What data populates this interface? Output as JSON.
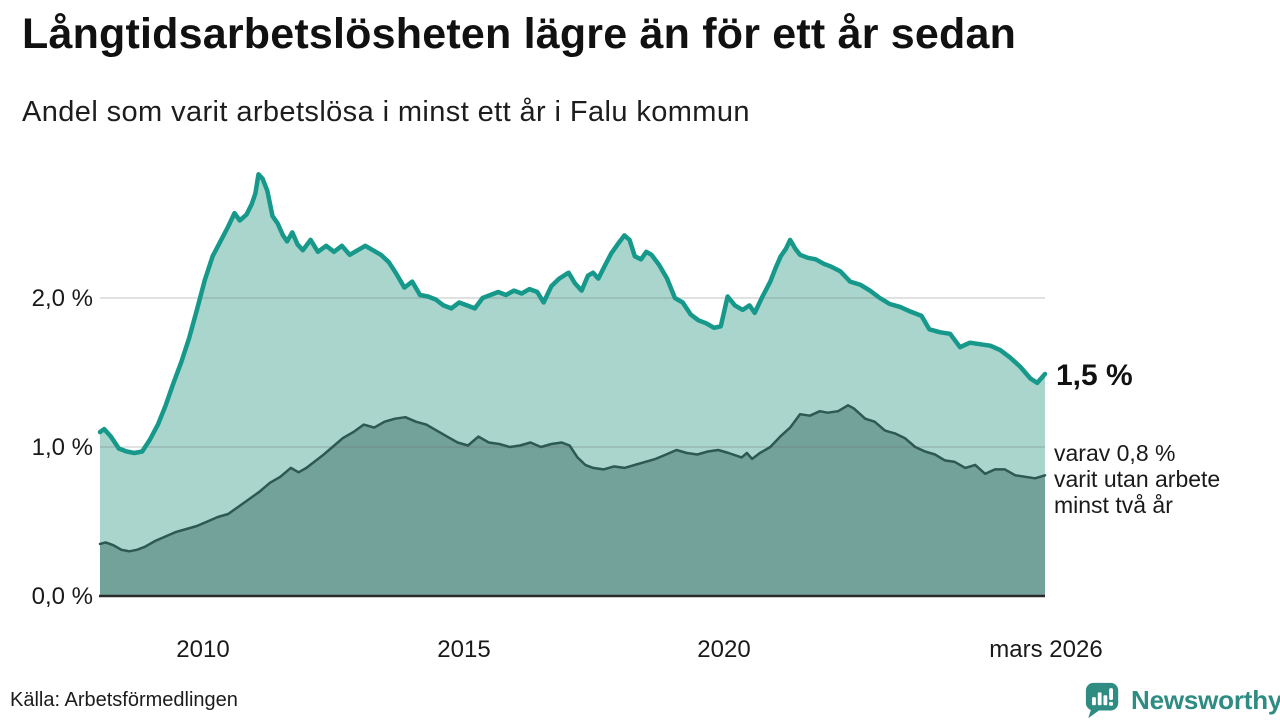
{
  "header": {
    "title": "Långtidsarbetslösheten lägre än för ett år sedan",
    "subtitle": "Andel som varit arbetslösa i minst ett år i Falu kommun"
  },
  "chart_data": {
    "type": "area",
    "title": "Långtidsarbetslösheten lägre än för ett år sedan",
    "subtitle": "Andel som varit arbetslösa i minst ett år i Falu kommun",
    "unit": "procent",
    "grid": "horizontal",
    "legend_position": "none",
    "x_axis": {
      "range_years": [
        2008.04,
        2026.17
      ],
      "ticks": [
        "2010",
        "2015",
        "2020",
        "mars 2026"
      ],
      "tick_years": [
        2010,
        2015,
        2020,
        2026.17
      ]
    },
    "y_axis": {
      "ticks": [
        "0,0 %",
        "1,0 %",
        "2,0 %"
      ],
      "tick_values": [
        0,
        1,
        2
      ],
      "gridline_values": [
        1,
        2
      ],
      "range": [
        0,
        3
      ]
    },
    "series": [
      {
        "id": "minst-ett-ar",
        "name": "Andel som varit arbetslösa i minst ett år",
        "line_color": "#16998a",
        "fill_color": "#a9d5cd",
        "end_value_label": "1,5 %",
        "points": [
          [
            2008.04,
            1.1
          ],
          [
            2008.12,
            1.12
          ],
          [
            2008.25,
            1.07
          ],
          [
            2008.4,
            0.99
          ],
          [
            2008.55,
            0.97
          ],
          [
            2008.7,
            0.96
          ],
          [
            2008.85,
            0.97
          ],
          [
            2009.0,
            1.05
          ],
          [
            2009.15,
            1.15
          ],
          [
            2009.3,
            1.28
          ],
          [
            2009.45,
            1.43
          ],
          [
            2009.6,
            1.57
          ],
          [
            2009.75,
            1.73
          ],
          [
            2009.9,
            1.92
          ],
          [
            2010.05,
            2.12
          ],
          [
            2010.2,
            2.28
          ],
          [
            2010.35,
            2.38
          ],
          [
            2010.5,
            2.48
          ],
          [
            2010.62,
            2.57
          ],
          [
            2010.72,
            2.52
          ],
          [
            2010.85,
            2.56
          ],
          [
            2010.95,
            2.63
          ],
          [
            2011.02,
            2.7
          ],
          [
            2011.08,
            2.83
          ],
          [
            2011.16,
            2.8
          ],
          [
            2011.25,
            2.72
          ],
          [
            2011.35,
            2.55
          ],
          [
            2011.45,
            2.5
          ],
          [
            2011.55,
            2.42
          ],
          [
            2011.63,
            2.38
          ],
          [
            2011.73,
            2.44
          ],
          [
            2011.83,
            2.36
          ],
          [
            2011.93,
            2.32
          ],
          [
            2012.08,
            2.39
          ],
          [
            2012.22,
            2.31
          ],
          [
            2012.38,
            2.35
          ],
          [
            2012.53,
            2.31
          ],
          [
            2012.68,
            2.35
          ],
          [
            2012.83,
            2.29
          ],
          [
            2012.98,
            2.32
          ],
          [
            2013.13,
            2.35
          ],
          [
            2013.28,
            2.32
          ],
          [
            2013.43,
            2.29
          ],
          [
            2013.58,
            2.24
          ],
          [
            2013.73,
            2.16
          ],
          [
            2013.88,
            2.07
          ],
          [
            2014.03,
            2.11
          ],
          [
            2014.18,
            2.02
          ],
          [
            2014.33,
            2.01
          ],
          [
            2014.48,
            1.99
          ],
          [
            2014.63,
            1.95
          ],
          [
            2014.78,
            1.93
          ],
          [
            2014.93,
            1.97
          ],
          [
            2015.08,
            1.95
          ],
          [
            2015.23,
            1.93
          ],
          [
            2015.38,
            2.0
          ],
          [
            2015.53,
            2.02
          ],
          [
            2015.68,
            2.04
          ],
          [
            2015.83,
            2.02
          ],
          [
            2015.98,
            2.05
          ],
          [
            2016.13,
            2.03
          ],
          [
            2016.28,
            2.06
          ],
          [
            2016.43,
            2.04
          ],
          [
            2016.55,
            1.97
          ],
          [
            2016.7,
            2.08
          ],
          [
            2016.85,
            2.13
          ],
          [
            2017.03,
            2.17
          ],
          [
            2017.15,
            2.1
          ],
          [
            2017.28,
            2.05
          ],
          [
            2017.4,
            2.15
          ],
          [
            2017.5,
            2.17
          ],
          [
            2017.6,
            2.13
          ],
          [
            2017.73,
            2.22
          ],
          [
            2017.85,
            2.3
          ],
          [
            2017.97,
            2.36
          ],
          [
            2018.1,
            2.42
          ],
          [
            2018.2,
            2.39
          ],
          [
            2018.3,
            2.28
          ],
          [
            2018.42,
            2.26
          ],
          [
            2018.52,
            2.31
          ],
          [
            2018.62,
            2.29
          ],
          [
            2018.77,
            2.22
          ],
          [
            2018.92,
            2.13
          ],
          [
            2019.07,
            2.0
          ],
          [
            2019.22,
            1.97
          ],
          [
            2019.37,
            1.89
          ],
          [
            2019.52,
            1.85
          ],
          [
            2019.67,
            1.83
          ],
          [
            2019.82,
            1.8
          ],
          [
            2019.95,
            1.81
          ],
          [
            2020.08,
            2.01
          ],
          [
            2020.22,
            1.95
          ],
          [
            2020.37,
            1.92
          ],
          [
            2020.5,
            1.95
          ],
          [
            2020.6,
            1.9
          ],
          [
            2020.75,
            2.01
          ],
          [
            2020.9,
            2.11
          ],
          [
            2021.0,
            2.2
          ],
          [
            2021.1,
            2.28
          ],
          [
            2021.2,
            2.33
          ],
          [
            2021.28,
            2.39
          ],
          [
            2021.38,
            2.33
          ],
          [
            2021.47,
            2.29
          ],
          [
            2021.62,
            2.27
          ],
          [
            2021.77,
            2.26
          ],
          [
            2021.92,
            2.23
          ],
          [
            2022.07,
            2.21
          ],
          [
            2022.24,
            2.18
          ],
          [
            2022.43,
            2.11
          ],
          [
            2022.62,
            2.09
          ],
          [
            2022.81,
            2.05
          ],
          [
            2023.0,
            2.0
          ],
          [
            2023.19,
            1.96
          ],
          [
            2023.39,
            1.94
          ],
          [
            2023.58,
            1.91
          ],
          [
            2023.8,
            1.88
          ],
          [
            2023.95,
            1.79
          ],
          [
            2024.16,
            1.77
          ],
          [
            2024.35,
            1.76
          ],
          [
            2024.54,
            1.67
          ],
          [
            2024.73,
            1.7
          ],
          [
            2024.92,
            1.69
          ],
          [
            2025.12,
            1.68
          ],
          [
            2025.31,
            1.65
          ],
          [
            2025.5,
            1.6
          ],
          [
            2025.69,
            1.54
          ],
          [
            2025.89,
            1.46
          ],
          [
            2026.02,
            1.43
          ],
          [
            2026.17,
            1.49
          ]
        ]
      },
      {
        "id": "minst-tva-ar",
        "name": "Varav arbetslösa minst två år",
        "line_color": "#2d5952",
        "fill_color": "#73a29a",
        "end_value_label": "0,8 %",
        "points": [
          [
            2008.04,
            0.35
          ],
          [
            2008.15,
            0.36
          ],
          [
            2008.3,
            0.34
          ],
          [
            2008.45,
            0.31
          ],
          [
            2008.6,
            0.3
          ],
          [
            2008.75,
            0.31
          ],
          [
            2008.9,
            0.33
          ],
          [
            2009.1,
            0.37
          ],
          [
            2009.3,
            0.4
          ],
          [
            2009.5,
            0.43
          ],
          [
            2009.7,
            0.45
          ],
          [
            2009.9,
            0.47
          ],
          [
            2010.1,
            0.5
          ],
          [
            2010.3,
            0.53
          ],
          [
            2010.5,
            0.55
          ],
          [
            2010.7,
            0.6
          ],
          [
            2010.9,
            0.65
          ],
          [
            2011.1,
            0.7
          ],
          [
            2011.3,
            0.76
          ],
          [
            2011.5,
            0.8
          ],
          [
            2011.7,
            0.86
          ],
          [
            2011.85,
            0.83
          ],
          [
            2012.0,
            0.86
          ],
          [
            2012.15,
            0.9
          ],
          [
            2012.3,
            0.94
          ],
          [
            2012.5,
            1.0
          ],
          [
            2012.7,
            1.06
          ],
          [
            2012.9,
            1.1
          ],
          [
            2013.1,
            1.15
          ],
          [
            2013.3,
            1.13
          ],
          [
            2013.5,
            1.17
          ],
          [
            2013.7,
            1.19
          ],
          [
            2013.9,
            1.2
          ],
          [
            2014.1,
            1.17
          ],
          [
            2014.3,
            1.15
          ],
          [
            2014.5,
            1.11
          ],
          [
            2014.7,
            1.07
          ],
          [
            2014.9,
            1.03
          ],
          [
            2015.1,
            1.01
          ],
          [
            2015.3,
            1.07
          ],
          [
            2015.5,
            1.03
          ],
          [
            2015.7,
            1.02
          ],
          [
            2015.9,
            1.0
          ],
          [
            2016.1,
            1.01
          ],
          [
            2016.3,
            1.03
          ],
          [
            2016.5,
            1.0
          ],
          [
            2016.7,
            1.02
          ],
          [
            2016.9,
            1.03
          ],
          [
            2017.05,
            1.01
          ],
          [
            2017.2,
            0.93
          ],
          [
            2017.35,
            0.88
          ],
          [
            2017.5,
            0.86
          ],
          [
            2017.7,
            0.85
          ],
          [
            2017.9,
            0.87
          ],
          [
            2018.1,
            0.86
          ],
          [
            2018.3,
            0.88
          ],
          [
            2018.5,
            0.9
          ],
          [
            2018.7,
            0.92
          ],
          [
            2018.9,
            0.95
          ],
          [
            2019.1,
            0.98
          ],
          [
            2019.3,
            0.96
          ],
          [
            2019.5,
            0.95
          ],
          [
            2019.7,
            0.97
          ],
          [
            2019.9,
            0.98
          ],
          [
            2020.1,
            0.96
          ],
          [
            2020.35,
            0.93
          ],
          [
            2020.45,
            0.96
          ],
          [
            2020.55,
            0.92
          ],
          [
            2020.7,
            0.96
          ],
          [
            2020.9,
            1.0
          ],
          [
            2021.09,
            1.07
          ],
          [
            2021.28,
            1.13
          ],
          [
            2021.47,
            1.22
          ],
          [
            2021.66,
            1.21
          ],
          [
            2021.85,
            1.24
          ],
          [
            2022.0,
            1.23
          ],
          [
            2022.2,
            1.24
          ],
          [
            2022.39,
            1.28
          ],
          [
            2022.5,
            1.26
          ],
          [
            2022.72,
            1.19
          ],
          [
            2022.9,
            1.17
          ],
          [
            2023.1,
            1.11
          ],
          [
            2023.3,
            1.09
          ],
          [
            2023.48,
            1.06
          ],
          [
            2023.68,
            1.0
          ],
          [
            2023.87,
            0.97
          ],
          [
            2024.06,
            0.95
          ],
          [
            2024.25,
            0.91
          ],
          [
            2024.44,
            0.9
          ],
          [
            2024.64,
            0.86
          ],
          [
            2024.83,
            0.88
          ],
          [
            2025.02,
            0.82
          ],
          [
            2025.21,
            0.85
          ],
          [
            2025.4,
            0.85
          ],
          [
            2025.6,
            0.81
          ],
          [
            2025.79,
            0.8
          ],
          [
            2025.98,
            0.79
          ],
          [
            2026.17,
            0.81
          ]
        ]
      }
    ],
    "annotations": {
      "total_end": "1,5 %",
      "sub_end": "varav 0,8 %\nvarit utan arbete\nminst två år"
    }
  },
  "footer": {
    "source": "Källa: Arbetsförmedlingen",
    "brand_name": "Newsworthy"
  },
  "colors": {
    "accent_teal": "#16998a",
    "light_fill": "#a9d5cd",
    "dark_fill": "#73a29a",
    "dark_line": "#2d5952",
    "brand": "#2e8c82"
  }
}
